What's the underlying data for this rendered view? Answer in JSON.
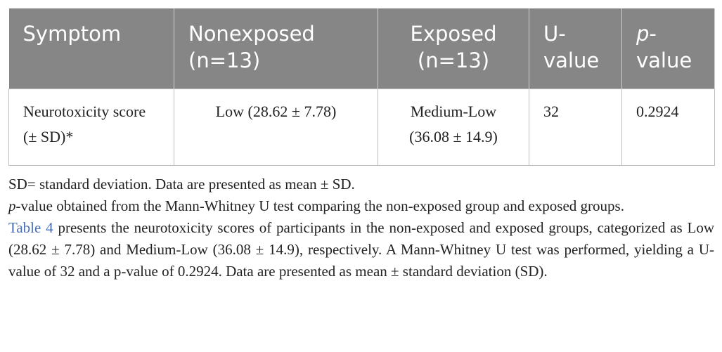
{
  "table": {
    "header": [
      "Symptom",
      "Nonexposed (n=13)",
      "Exposed (n=13)",
      "U-value",
      {
        "italic": "p",
        "rest": "-value"
      }
    ],
    "rows": [
      [
        "Neurotoxicity score (± SD)*",
        "Low (28.62 ± 7.78)",
        "Medium-Low (36.08 ± 14.9)",
        32,
        0.2924
      ]
    ]
  },
  "notes": [
    "SD= standard deviation. Data are presented as mean ± SD.",
    {
      "italic": "p",
      "rest": "-value obtained from the Mann-Whitney U test comparing the non-exposed group and exposed groups."
    }
  ],
  "paragraph": {
    "link": "Table 4",
    "text": " presents the neurotoxicity scores of participants in the non-exposed and exposed groups, categorized as Low (28.62 ± 7.78) and Medium-Low (36.08 ± 14.9), respectively. A Mann-Whitney U test was performed, yielding a U-value of 32 and a p-value of 0.2924. Data are presented as mean ± standard deviation (SD)."
  }
}
